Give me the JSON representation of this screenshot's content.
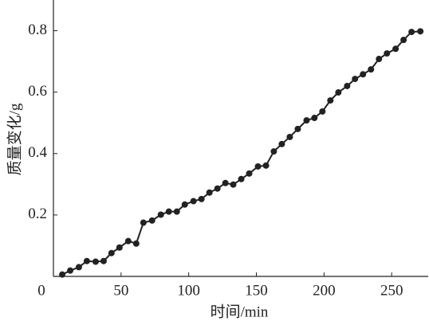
{
  "chart_data": {
    "type": "line",
    "x_label": "时间/min",
    "y_label": "质量变化/g",
    "x": [
      6.5,
      12.4,
      18.8,
      24.7,
      31.2,
      37.1,
      42.9,
      48.8,
      55.3,
      61.2,
      66.5,
      72.9,
      79.4,
      85.3,
      91.2,
      97.1,
      103.5,
      109.4,
      115.3,
      121.2,
      127.1,
      132.9,
      138.8,
      144.7,
      151.2,
      157.1,
      162.9,
      168.8,
      174.7,
      180.6,
      187.1,
      192.9,
      198.8,
      204.7,
      210.6,
      217.1,
      222.9,
      228.8,
      234.7,
      240.6,
      246.5,
      252.9,
      258.8,
      264.7,
      271.2
    ],
    "series": [
      {
        "color": "#222222",
        "values": [
          0.006,
          0.019,
          0.03,
          0.05,
          0.048,
          0.05,
          0.076,
          0.094,
          0.115,
          0.107,
          0.175,
          0.182,
          0.201,
          0.211,
          0.211,
          0.234,
          0.245,
          0.252,
          0.273,
          0.286,
          0.304,
          0.299,
          0.317,
          0.335,
          0.358,
          0.361,
          0.407,
          0.431,
          0.454,
          0.48,
          0.508,
          0.516,
          0.537,
          0.573,
          0.599,
          0.62,
          0.643,
          0.658,
          0.674,
          0.708,
          0.726,
          0.741,
          0.77,
          0.796,
          0.798
        ]
      }
    ],
    "xlim": [
      0,
      277
    ],
    "xticks": [
      0,
      50,
      100,
      150,
      200,
      250
    ],
    "ylim": [
      0,
      0.9
    ],
    "yticks": [
      0.2,
      0.4,
      0.6,
      0.8
    ],
    "grid": false
  }
}
